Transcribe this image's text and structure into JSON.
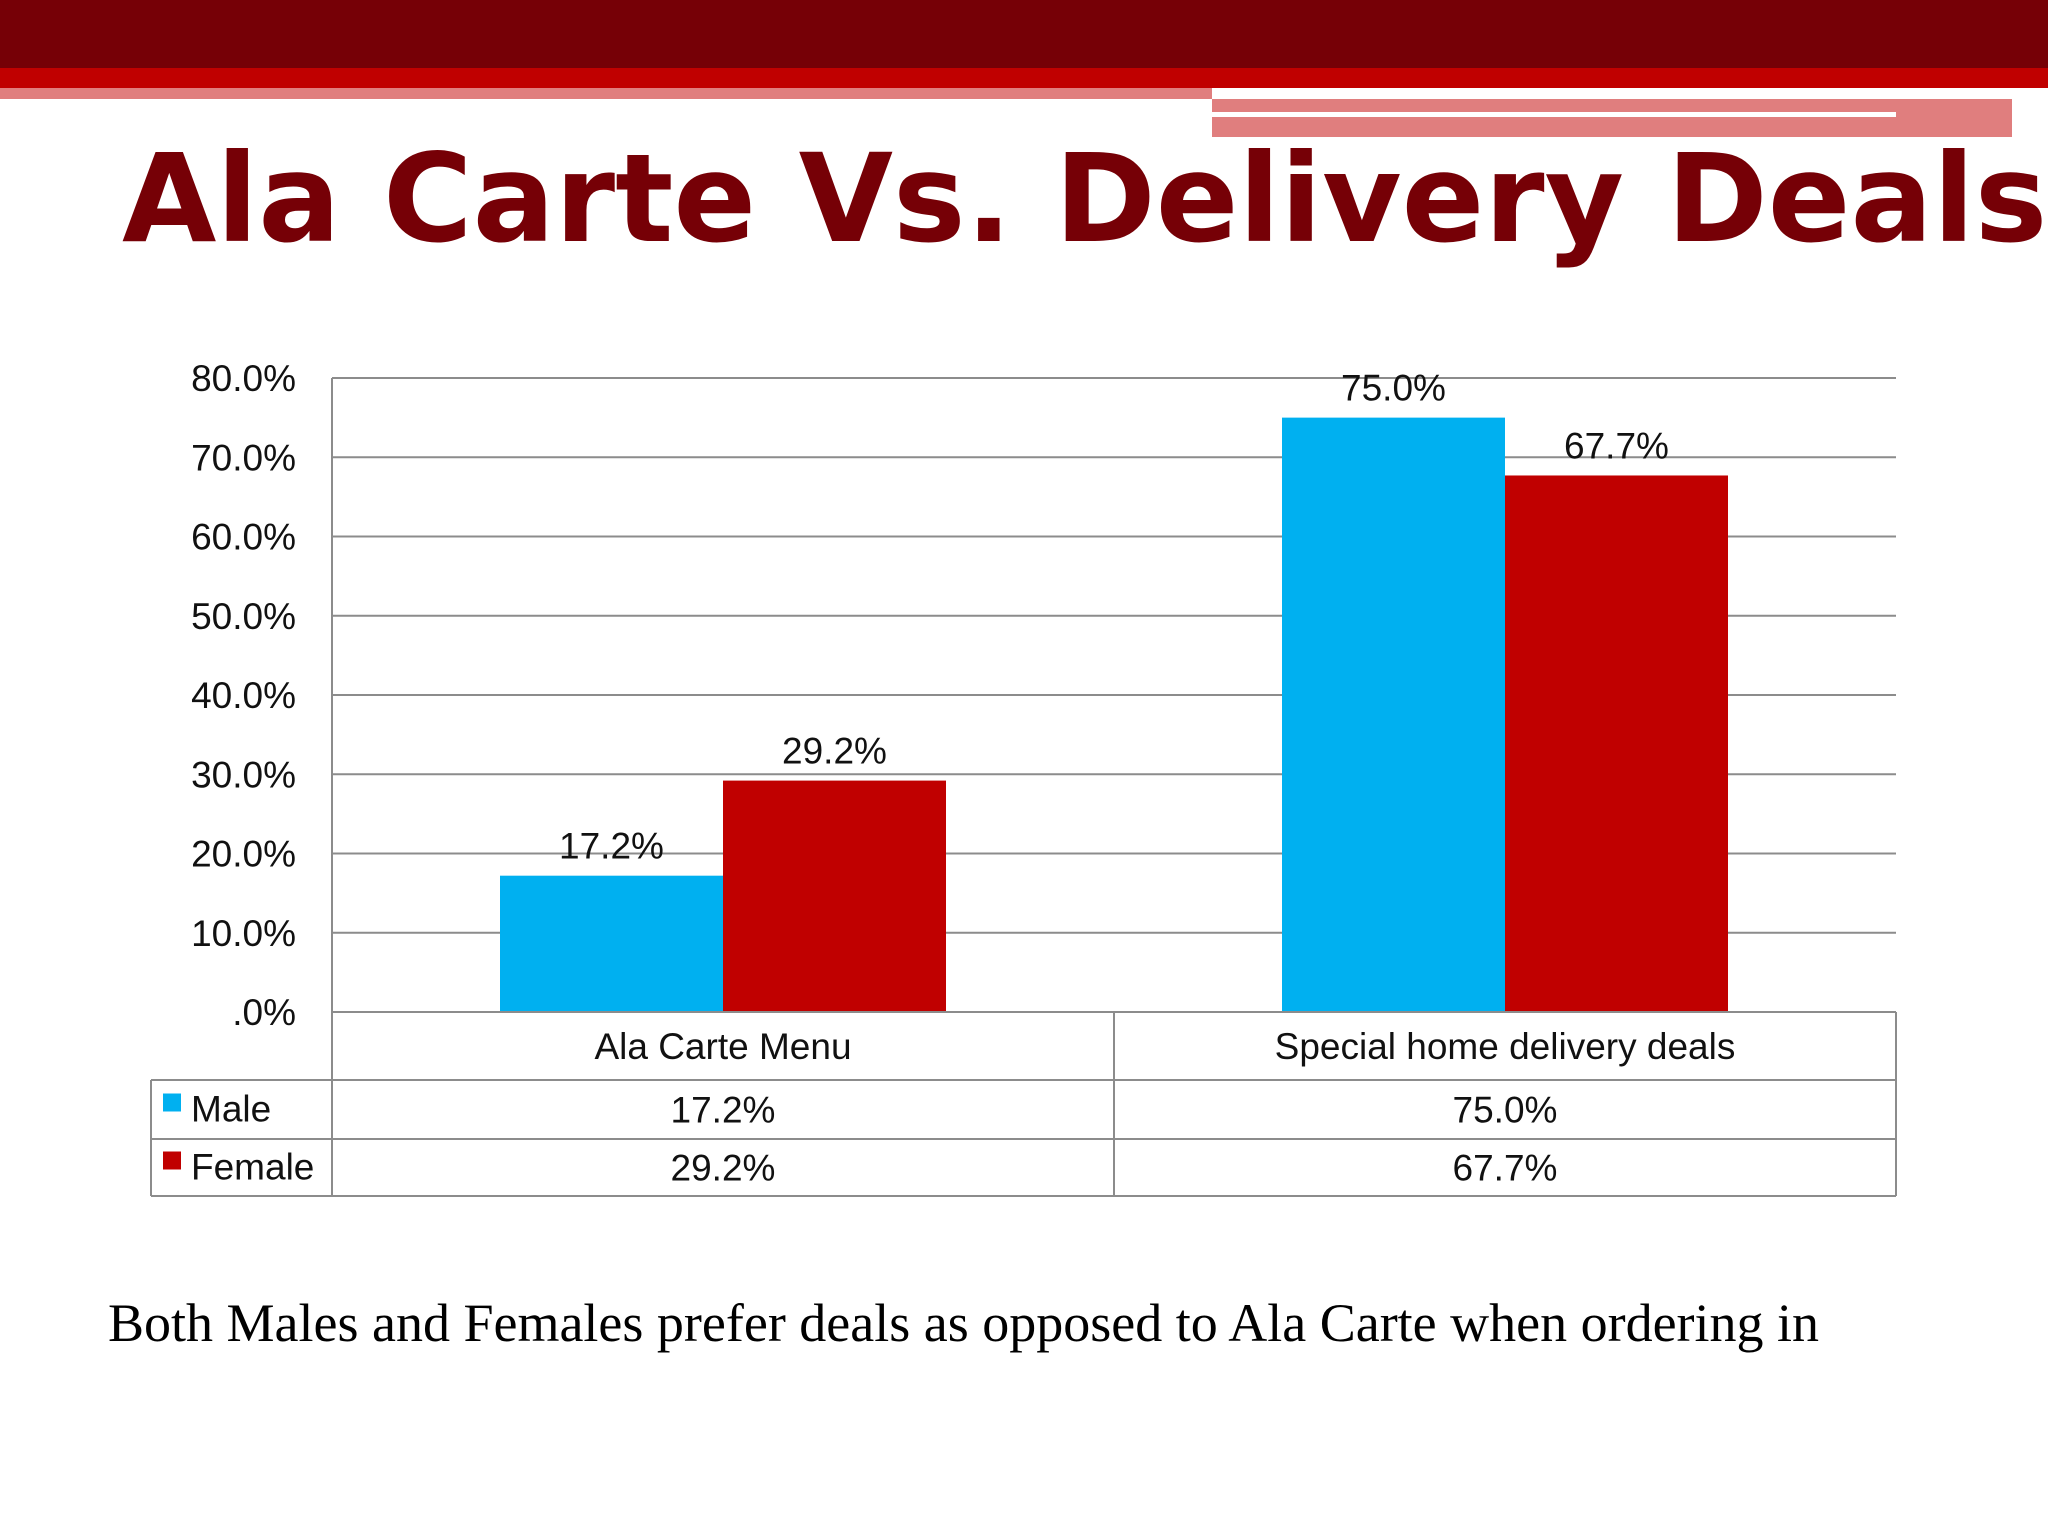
{
  "slide": {
    "title": "Ala Carte Vs. Delivery Deals",
    "caption": "Both Males and Females prefer deals as opposed to Ala Carte when ordering in"
  },
  "colors": {
    "accent_dark": "#760006",
    "accent_red": "#c00000",
    "accent_light": "#e07e7e",
    "title": "#760006",
    "male": "#00b0f0",
    "female": "#c00000"
  },
  "chart_data": {
    "type": "bar",
    "categories": [
      "Ala Carte Menu",
      "Special home delivery deals"
    ],
    "series": [
      {
        "name": "Male",
        "values": [
          17.2,
          75.0
        ],
        "labels": [
          "17.2%",
          "75.0%"
        ]
      },
      {
        "name": "Female",
        "values": [
          29.2,
          67.7
        ],
        "labels": [
          "29.2%",
          "67.7%"
        ]
      }
    ],
    "y_ticks": [
      0,
      10,
      20,
      30,
      40,
      50,
      60,
      70,
      80
    ],
    "y_tick_labels": [
      ".0%",
      "10.0%",
      "20.0%",
      "30.0%",
      "40.0%",
      "50.0%",
      "60.0%",
      "70.0%",
      "80.0%"
    ],
    "ylim": [
      0,
      80
    ],
    "grid": true,
    "legend": "data table",
    "data_table": true
  }
}
